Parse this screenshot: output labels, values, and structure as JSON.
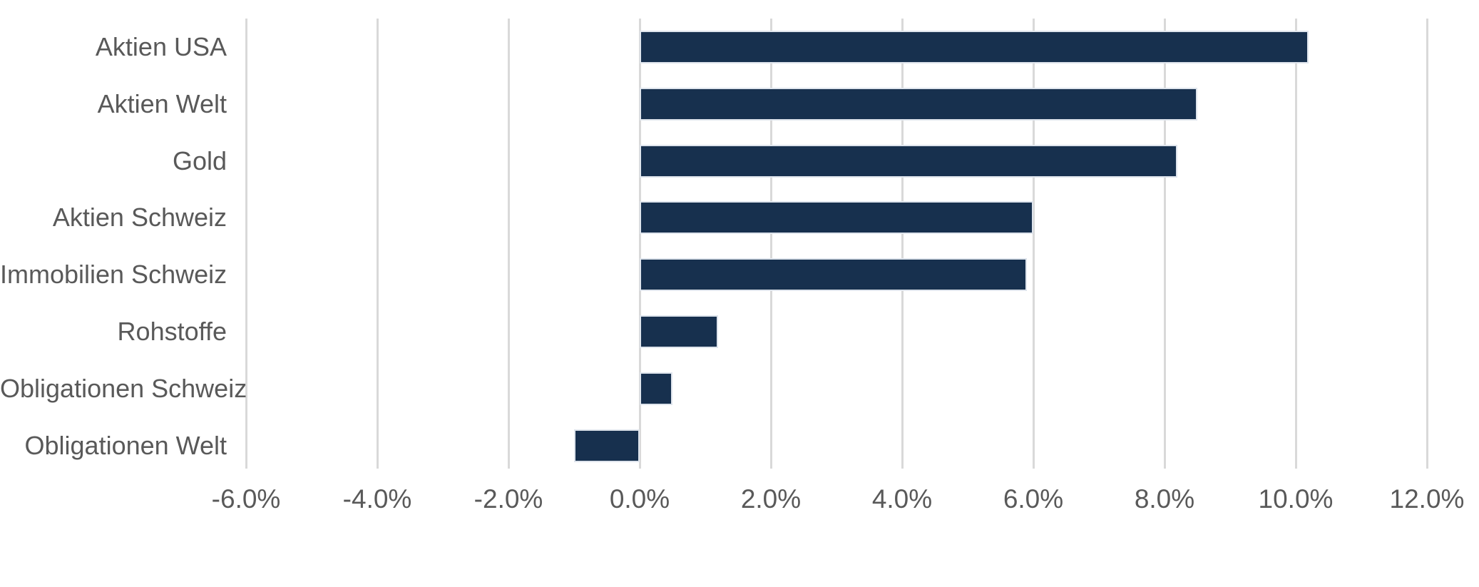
{
  "page": {
    "background_color": "#ffffff",
    "title": ""
  },
  "chart_data": {
    "type": "bar",
    "orientation": "horizontal",
    "title": "",
    "xlabel": "",
    "ylabel": "",
    "categories": [
      "Aktien USA",
      "Aktien Welt",
      "Gold",
      "Aktien Schweiz",
      "Immobilien Schweiz",
      "Rohstoffe",
      "Obligationen Schweiz",
      "Obligationen Welt"
    ],
    "values": [
      10.2,
      8.5,
      8.2,
      6.0,
      5.9,
      1.2,
      0.5,
      -1.0
    ],
    "value_unit": "percent",
    "x_tick_values": [
      -6,
      -4,
      -2,
      0,
      2,
      4,
      6,
      8,
      10,
      12
    ],
    "x_tick_labels": [
      "-6.0%",
      "-4.0%",
      "-2.0%",
      "0.0%",
      "2.0%",
      "4.0%",
      "6.0%",
      "8.0%",
      "10.0%",
      "12.0%"
    ],
    "xlim": [
      -7.2,
      12.8
    ],
    "grid": "vertical-only",
    "legend": "none",
    "bar_color": "#17304e",
    "bar_edge_color": "#dee4ec",
    "gridline_color": "#d9d9d9",
    "text_color": "#595959"
  }
}
